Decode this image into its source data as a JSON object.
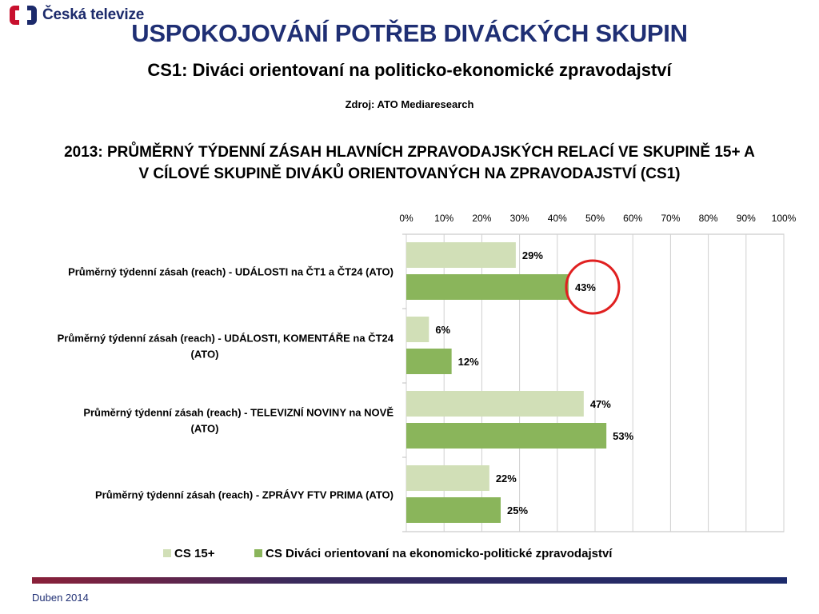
{
  "header": {
    "logo_text": "Česká televize",
    "title": "USPOKOJOVÁNÍ POTŘEB DIVÁCKÝCH SKUPIN",
    "subtitle": "CS1: Diváci orientovaní na politicko-ekonomické zpravodajství",
    "source": "Zdroj: ATO Mediaresearch"
  },
  "chart_data": {
    "type": "bar",
    "orientation": "horizontal",
    "title_lines": [
      "2013: PRŮMĚRNÝ TÝDENNÍ ZÁSAH HLAVNÍCH ZPRAVODAJSKÝCH RELACÍ VE SKUPINĚ 15+ A",
      "V CÍLOVÉ SKUPINĚ DIVÁKŮ ORIENTOVANÝCH NA ZPRAVODAJSTVÍ (CS1)"
    ],
    "categories": [
      [
        "Průměrný týdenní zásah (reach) - UDÁLOSTI na ČT1 a ČT24 (ATO)"
      ],
      [
        "Průměrný týdenní zásah (reach) - UDÁLOSTI, KOMENTÁŘE na ČT24",
        "(ATO)"
      ],
      [
        "Průměrný týdenní zásah (reach) - TELEVIZNÍ NOVINY na NOVĚ",
        "(ATO)"
      ],
      [
        "Průměrný týdenní zásah (reach) - ZPRÁVY FTV PRIMA (ATO)"
      ]
    ],
    "series": [
      {
        "name": "CS 15+",
        "color": "#d1dfb7",
        "values": [
          29,
          6,
          47,
          22
        ]
      },
      {
        "name": "CS Diváci orientovaní na ekonomicko-politické zpravodajství",
        "color": "#8ab55b",
        "values": [
          43,
          12,
          53,
          25
        ]
      }
    ],
    "xlim": [
      0,
      100
    ],
    "x_ticks": [
      "0%",
      "10%",
      "20%",
      "30%",
      "40%",
      "50%",
      "60%",
      "70%",
      "80%",
      "90%",
      "100%"
    ],
    "value_suffix": "%",
    "grid": true,
    "axis_position": "top",
    "legend_position": "bottom",
    "highlight": {
      "series_index": 1,
      "category_index": 0,
      "shape": "circle",
      "color": "#e02020"
    }
  },
  "footer": {
    "date": "Duben 2014"
  }
}
